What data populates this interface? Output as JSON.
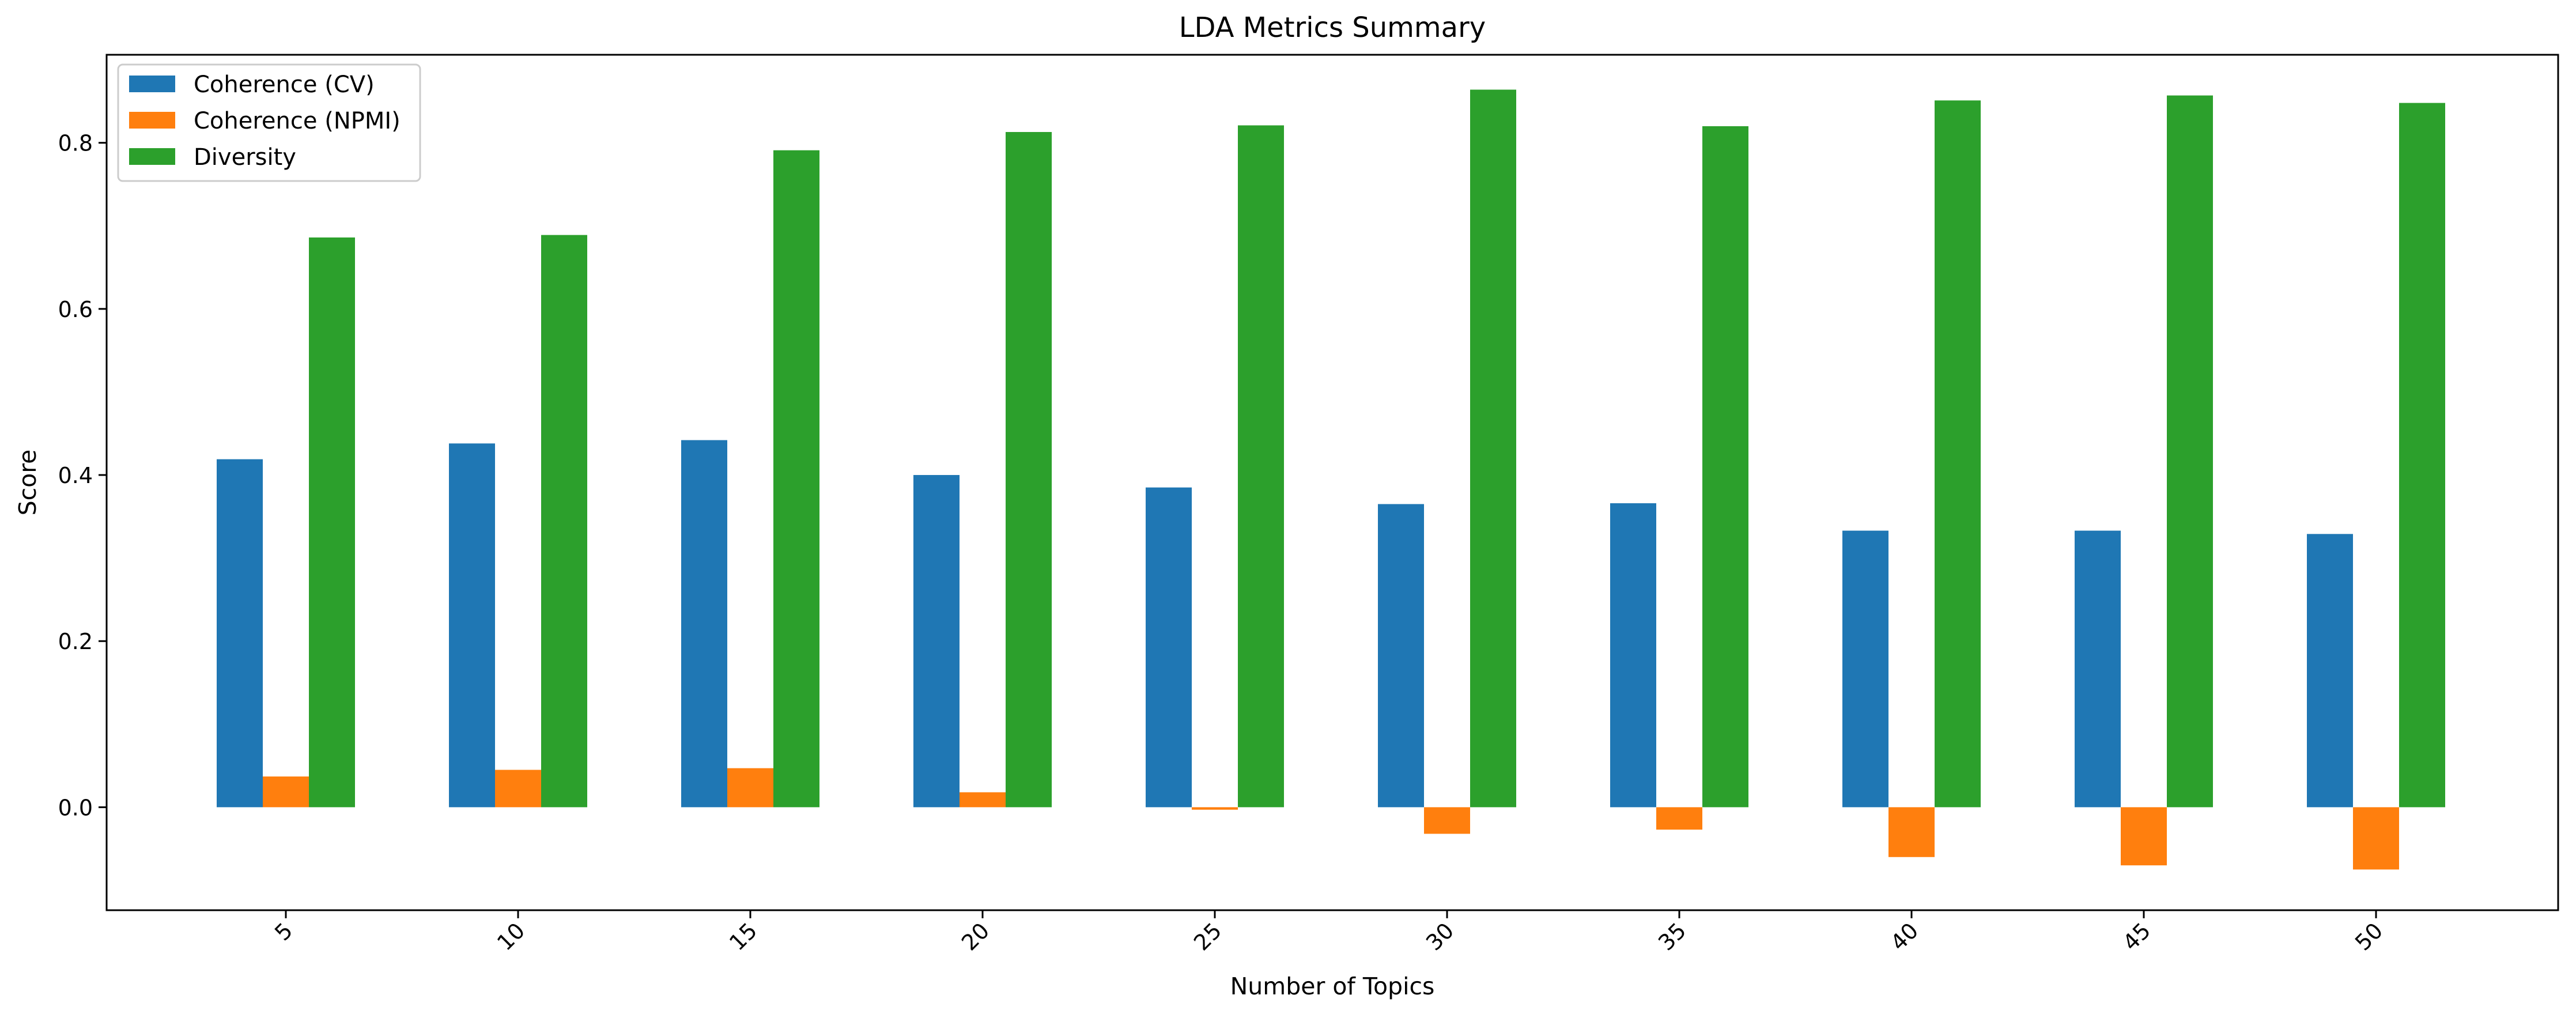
{
  "chart_data": {
    "type": "bar",
    "title": "LDA Metrics Summary",
    "xlabel": "Number of Topics",
    "ylabel": "Score",
    "categories": [
      "5",
      "10",
      "15",
      "20",
      "25",
      "30",
      "35",
      "40",
      "45",
      "50"
    ],
    "series": [
      {
        "name": "Coherence (CV)",
        "color": "#1f77b4",
        "values": [
          0.419,
          0.438,
          0.442,
          0.4,
          0.385,
          0.365,
          0.366,
          0.333,
          0.333,
          0.329
        ]
      },
      {
        "name": "Coherence (NPMI)",
        "color": "#ff7f0e",
        "values": [
          0.037,
          0.045,
          0.047,
          0.018,
          -0.003,
          -0.032,
          -0.027,
          -0.06,
          -0.07,
          -0.075
        ]
      },
      {
        "name": "Diversity",
        "color": "#2ca02c",
        "values": [
          0.686,
          0.689,
          0.791,
          0.813,
          0.821,
          0.864,
          0.82,
          0.851,
          0.857,
          0.848
        ]
      }
    ],
    "ylim": [
      -0.124,
      0.906
    ],
    "yticks": [
      "0.0",
      "0.2",
      "0.4",
      "0.6",
      "0.8"
    ],
    "xtick_rotation": 45,
    "grid": false,
    "legend_position": "upper-left"
  }
}
